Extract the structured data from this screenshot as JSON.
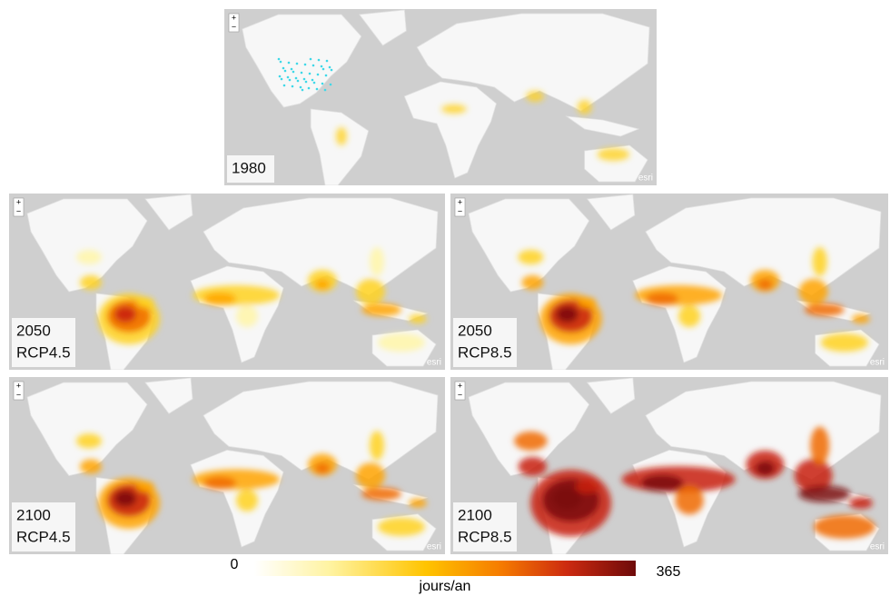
{
  "panels": [
    {
      "year": "1980"
    },
    {
      "year": "2050",
      "scenario": "RCP4.5"
    },
    {
      "year": "2050",
      "scenario": "RCP8.5"
    },
    {
      "year": "2100",
      "scenario": "RCP4.5"
    },
    {
      "year": "2100",
      "scenario": "RCP8.5"
    }
  ],
  "zoom": {
    "in": "+",
    "out": "−"
  },
  "watermark": "esri",
  "legend": {
    "min": 0,
    "max": 365,
    "unit": "jours/an"
  }
}
